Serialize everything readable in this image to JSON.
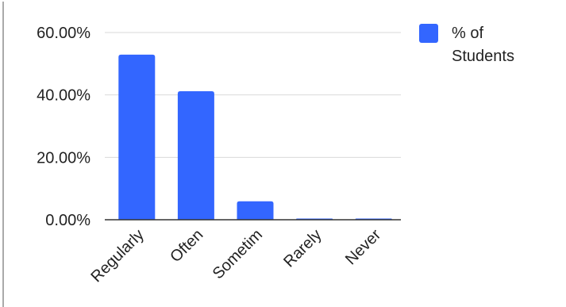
{
  "chart_data": {
    "type": "bar",
    "title": "",
    "xlabel": "",
    "ylabel": "",
    "categories": [
      "Regularly",
      "Often",
      "Sometim",
      "Rarely",
      "Never"
    ],
    "series": [
      {
        "name": "% of Students",
        "values": [
          52.9,
          41.2,
          5.9,
          0.0,
          0.0
        ]
      }
    ],
    "value_format": "percent_2dp",
    "ylim": [
      0,
      60
    ],
    "yticks": [
      0,
      20,
      40,
      60
    ],
    "ytick_labels": [
      "0.00%",
      "20.00%",
      "40.00%",
      "60.00%"
    ],
    "grid": true,
    "legend_position": "right",
    "legend_lines": [
      "% of",
      "Students"
    ],
    "colors": {
      "bar": "#3366ff",
      "grid": "#d9d9d9",
      "axis": "#333333",
      "text": "#222222"
    }
  }
}
